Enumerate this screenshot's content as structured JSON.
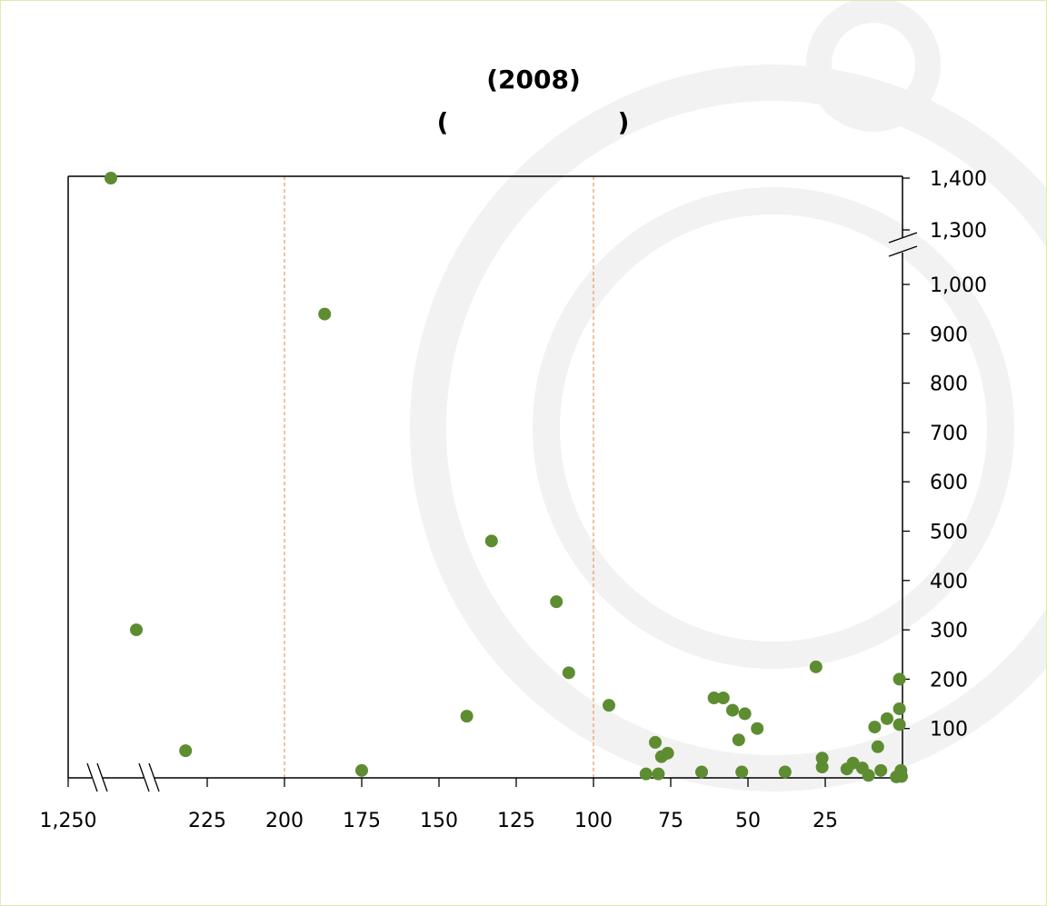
{
  "chart_data": {
    "type": "scatter",
    "title_line1": "(2008)",
    "title_line2_left": "(",
    "title_line2_right": ")",
    "x_axis": {
      "reversed": true,
      "broken": true,
      "ticks": [
        "1,250",
        "225",
        "200",
        "175",
        "150",
        "125",
        "100",
        "75",
        "50",
        "25"
      ]
    },
    "y_axis": {
      "position": "right",
      "broken": true,
      "ticks": [
        "100",
        "200",
        "300",
        "400",
        "500",
        "600",
        "700",
        "800",
        "900",
        "1,000",
        "1,300",
        "1,400"
      ]
    },
    "reference_lines_x": [
      200,
      100
    ],
    "reference_line_color": "#e59a62",
    "marker_color": "#5e8c31",
    "grid": false,
    "points": [
      {
        "x": 1245,
        "y": 1400
      },
      {
        "x": 1240,
        "y": 300
      },
      {
        "x": 232,
        "y": 55
      },
      {
        "x": 187,
        "y": 940
      },
      {
        "x": 175,
        "y": 15
      },
      {
        "x": 141,
        "y": 125
      },
      {
        "x": 133,
        "y": 480
      },
      {
        "x": 112,
        "y": 357
      },
      {
        "x": 108,
        "y": 213
      },
      {
        "x": 95,
        "y": 147
      },
      {
        "x": 83,
        "y": 8
      },
      {
        "x": 80,
        "y": 72
      },
      {
        "x": 79,
        "y": 8
      },
      {
        "x": 78,
        "y": 43
      },
      {
        "x": 76,
        "y": 50
      },
      {
        "x": 65,
        "y": 12
      },
      {
        "x": 61,
        "y": 162
      },
      {
        "x": 58,
        "y": 162
      },
      {
        "x": 55,
        "y": 137
      },
      {
        "x": 53,
        "y": 77
      },
      {
        "x": 52,
        "y": 12
      },
      {
        "x": 51,
        "y": 130
      },
      {
        "x": 47,
        "y": 100
      },
      {
        "x": 38,
        "y": 12
      },
      {
        "x": 28,
        "y": 225
      },
      {
        "x": 26,
        "y": 40
      },
      {
        "x": 26,
        "y": 22
      },
      {
        "x": 18,
        "y": 18
      },
      {
        "x": 16,
        "y": 30
      },
      {
        "x": 13,
        "y": 20
      },
      {
        "x": 11,
        "y": 5
      },
      {
        "x": 9,
        "y": 103
      },
      {
        "x": 8,
        "y": 63
      },
      {
        "x": 7,
        "y": 15
      },
      {
        "x": 5,
        "y": 120
      },
      {
        "x": 2,
        "y": 2
      },
      {
        "x": 1,
        "y": 200
      },
      {
        "x": 1,
        "y": 140
      },
      {
        "x": 1,
        "y": 108
      },
      {
        "x": 0.5,
        "y": 15
      },
      {
        "x": 0.3,
        "y": 3
      }
    ]
  }
}
